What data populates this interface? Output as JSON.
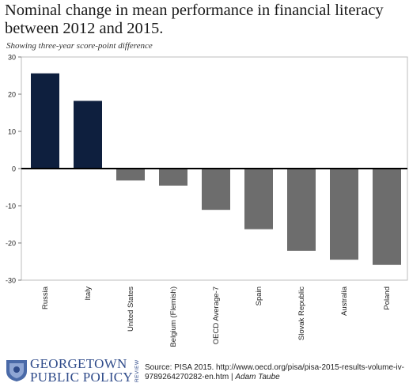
{
  "chart_data": {
    "type": "bar",
    "title": "Nominal change in mean performance in financial literacy between 2012 and 2015.",
    "subtitle": "Showing  three-year score-point difference",
    "categories": [
      "Russia",
      "Italy",
      "United States",
      "Belgium (Flemish)",
      "OECD Average-7",
      "Spain",
      "Slovak Republic",
      "Australia",
      "Poland"
    ],
    "values": [
      25.6,
      18.2,
      -3.2,
      -4.6,
      -11.1,
      -16.3,
      -22.1,
      -24.5,
      -25.9
    ],
    "bar_colors": [
      "#0e1f3e",
      "#0e1f3e",
      "#6d6d6d",
      "#6d6d6d",
      "#6d6d6d",
      "#6d6d6d",
      "#6d6d6d",
      "#6d6d6d",
      "#6d6d6d"
    ],
    "y_ticks": [
      30,
      20,
      10,
      0,
      -10,
      -20,
      -30
    ],
    "ylim": [
      -30,
      30
    ],
    "xlabel": "",
    "ylabel": "",
    "grid": false
  },
  "footer": {
    "logo_line1": "GEORGETOWN",
    "logo_line2": "PUBLIC POLICY",
    "logo_review": "REVIEW",
    "source_text": "Source: PISA 2015. http://www.oecd.org/pisa/pisa-2015-results-volume-iv-9789264270282-en.htm |",
    "author": "Adam Taube"
  }
}
